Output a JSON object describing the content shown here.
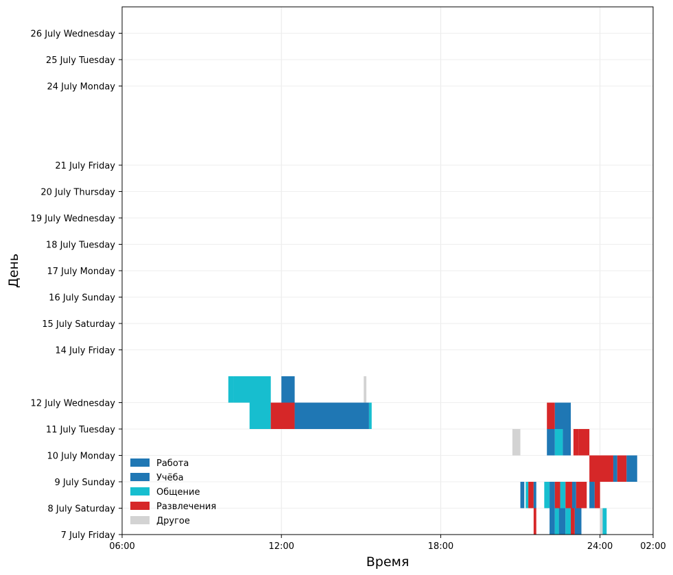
{
  "chart_data": {
    "type": "timeline",
    "xlabel": "Время",
    "ylabel": "День",
    "x_range_hours": [
      6,
      26
    ],
    "x_ticks": [
      {
        "hour": 6,
        "label": "06:00"
      },
      {
        "hour": 12,
        "label": "12:00"
      },
      {
        "hour": 18,
        "label": "18:00"
      },
      {
        "hour": 24,
        "label": "24:00"
      },
      {
        "hour": 26,
        "label": "02:00"
      }
    ],
    "y_range": [
      0,
      20
    ],
    "grid": true,
    "legend_position": "lower-left",
    "colors": {
      "Работа": "#1f77b4",
      "Учёба": "#1f77b4",
      "Общение": "#17becf",
      "Развлечения": "#d62728",
      "Другое": "#d3d3d3"
    },
    "legend": [
      "Работа",
      "Учёба",
      "Общение",
      "Развлечения",
      "Другое"
    ],
    "days": [
      {
        "y": 0,
        "label": "7 July Friday"
      },
      {
        "y": 1,
        "label": "8 July Saturday"
      },
      {
        "y": 2,
        "label": "9 July Sunday"
      },
      {
        "y": 3,
        "label": "10 July Monday"
      },
      {
        "y": 4,
        "label": "11 July Tuesday"
      },
      {
        "y": 5,
        "label": "12 July Wednesday"
      },
      {
        "y": 7,
        "label": "14 July Friday"
      },
      {
        "y": 8,
        "label": "15 July Saturday"
      },
      {
        "y": 9,
        "label": "16 July Sunday"
      },
      {
        "y": 10,
        "label": "17 July Monday"
      },
      {
        "y": 11,
        "label": "18 July Tuesday"
      },
      {
        "y": 12,
        "label": "19 July Wednesday"
      },
      {
        "y": 13,
        "label": "20 July Thursday"
      },
      {
        "y": 14,
        "label": "21 July Friday"
      },
      {
        "y": 17,
        "label": "24 July Monday"
      },
      {
        "y": 18,
        "label": "25 July Tuesday"
      },
      {
        "y": 19,
        "label": "26 July Wednesday"
      }
    ],
    "segments": [
      {
        "y": 0,
        "start": 21.5,
        "end": 21.6,
        "cat": "Развлечения"
      },
      {
        "y": 0,
        "start": 22.1,
        "end": 22.3,
        "cat": "Работа"
      },
      {
        "y": 0,
        "start": 22.3,
        "end": 22.45,
        "cat": "Общение"
      },
      {
        "y": 0,
        "start": 22.45,
        "end": 22.7,
        "cat": "Работа"
      },
      {
        "y": 0,
        "start": 22.7,
        "end": 22.9,
        "cat": "Общение"
      },
      {
        "y": 0,
        "start": 22.9,
        "end": 23.05,
        "cat": "Развлечения"
      },
      {
        "y": 0,
        "start": 23.05,
        "end": 23.3,
        "cat": "Работа"
      },
      {
        "y": 0,
        "start": 24.0,
        "end": 24.1,
        "cat": "Другое"
      },
      {
        "y": 0,
        "start": 24.1,
        "end": 24.25,
        "cat": "Общение"
      },
      {
        "y": 1,
        "start": 21.0,
        "end": 21.15,
        "cat": "Работа"
      },
      {
        "y": 1,
        "start": 21.2,
        "end": 21.3,
        "cat": "Общение"
      },
      {
        "y": 1,
        "start": 21.3,
        "end": 21.5,
        "cat": "Развлечения"
      },
      {
        "y": 1,
        "start": 21.5,
        "end": 21.6,
        "cat": "Работа"
      },
      {
        "y": 1,
        "start": 21.9,
        "end": 22.1,
        "cat": "Общение"
      },
      {
        "y": 1,
        "start": 22.1,
        "end": 22.3,
        "cat": "Работа"
      },
      {
        "y": 1,
        "start": 22.3,
        "end": 22.5,
        "cat": "Развлечения"
      },
      {
        "y": 1,
        "start": 22.5,
        "end": 22.7,
        "cat": "Общение"
      },
      {
        "y": 1,
        "start": 22.7,
        "end": 22.95,
        "cat": "Развлечения"
      },
      {
        "y": 1,
        "start": 22.95,
        "end": 23.1,
        "cat": "Работа"
      },
      {
        "y": 1,
        "start": 23.1,
        "end": 23.5,
        "cat": "Развлечения"
      },
      {
        "y": 1,
        "start": 23.6,
        "end": 23.8,
        "cat": "Работа"
      },
      {
        "y": 1,
        "start": 23.8,
        "end": 24.0,
        "cat": "Развлечения"
      },
      {
        "y": 2,
        "start": 23.6,
        "end": 24.5,
        "cat": "Развлечения"
      },
      {
        "y": 2,
        "start": 24.5,
        "end": 24.65,
        "cat": "Работа"
      },
      {
        "y": 2,
        "start": 24.65,
        "end": 25.0,
        "cat": "Развлечения"
      },
      {
        "y": 2,
        "start": 25.0,
        "end": 25.4,
        "cat": "Работа"
      },
      {
        "y": 3,
        "start": 20.7,
        "end": 21.0,
        "cat": "Другое"
      },
      {
        "y": 3,
        "start": 22.0,
        "end": 22.3,
        "cat": "Работа"
      },
      {
        "y": 3,
        "start": 22.3,
        "end": 22.6,
        "cat": "Общение"
      },
      {
        "y": 3,
        "start": 22.6,
        "end": 22.9,
        "cat": "Работа"
      },
      {
        "y": 3,
        "start": 23.0,
        "end": 23.2,
        "cat": "Развлечения"
      },
      {
        "y": 3,
        "start": 23.2,
        "end": 23.6,
        "cat": "Развлечения"
      },
      {
        "y": 4,
        "start": 10.8,
        "end": 11.6,
        "cat": "Общение"
      },
      {
        "y": 4,
        "start": 11.6,
        "end": 12.5,
        "cat": "Развлечения"
      },
      {
        "y": 4,
        "start": 12.5,
        "end": 15.3,
        "cat": "Работа"
      },
      {
        "y": 4,
        "start": 15.3,
        "end": 15.4,
        "cat": "Общение"
      },
      {
        "y": 4,
        "start": 22.0,
        "end": 22.3,
        "cat": "Развлечения"
      },
      {
        "y": 4,
        "start": 22.3,
        "end": 22.9,
        "cat": "Работа"
      },
      {
        "y": 5,
        "start": 10.0,
        "end": 10.2,
        "cat": "Общение"
      },
      {
        "y": 5,
        "start": 10.2,
        "end": 11.6,
        "cat": "Общение"
      },
      {
        "y": 5,
        "start": 12.0,
        "end": 12.5,
        "cat": "Работа"
      },
      {
        "y": 5,
        "start": 15.1,
        "end": 15.2,
        "cat": "Другое"
      }
    ]
  }
}
